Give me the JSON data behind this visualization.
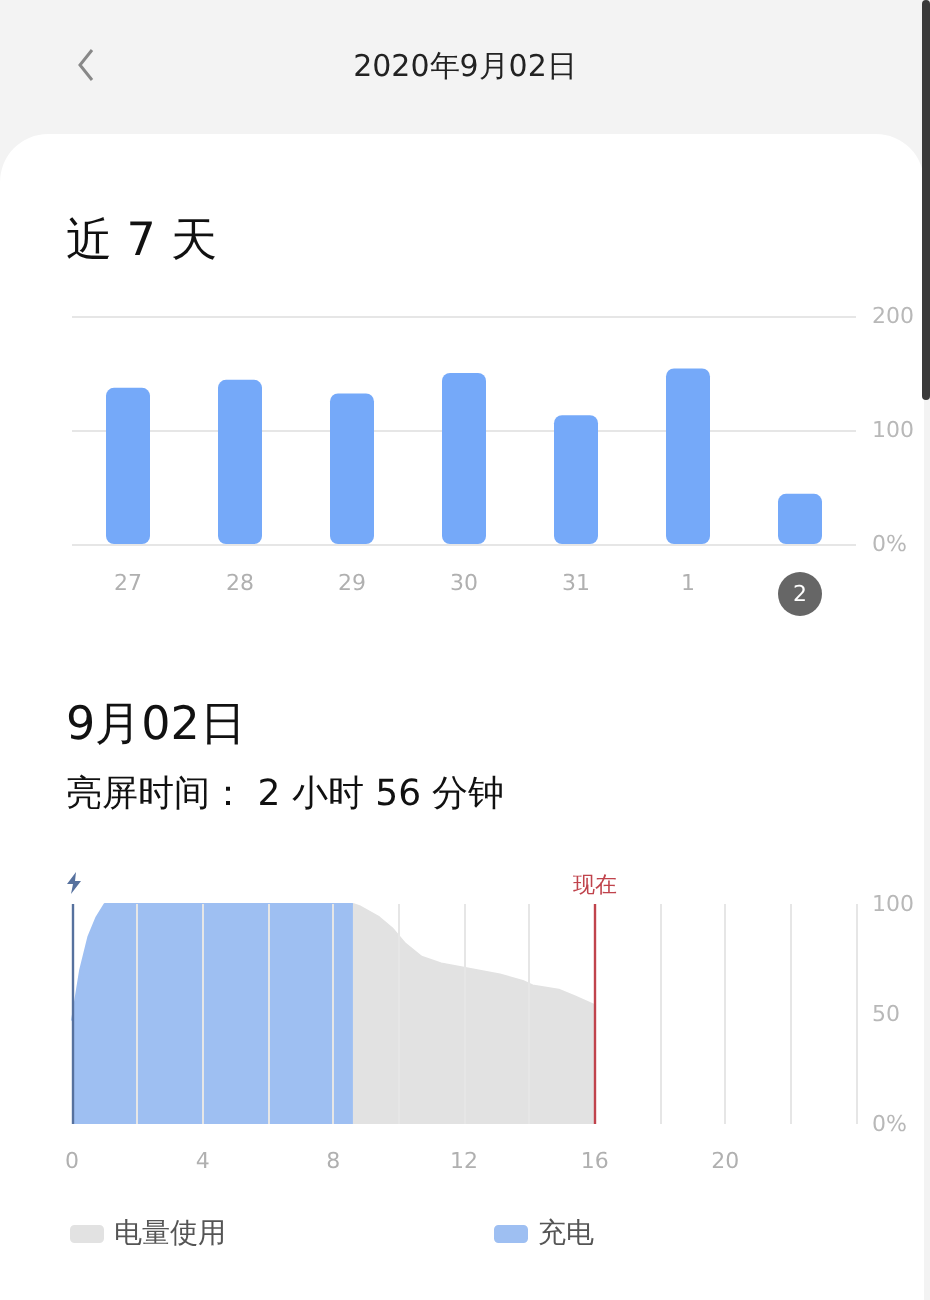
{
  "chart_data": [
    {
      "type": "bar",
      "title": "近 7 天",
      "annotations": [
        "2020年9月02日"
      ],
      "categories": [
        "27",
        "28",
        "29",
        "30",
        "31",
        "1",
        "2"
      ],
      "values": [
        137,
        144,
        132,
        150,
        113,
        154,
        44
      ],
      "color": "#75a9f9",
      "ylim": [
        0,
        200
      ],
      "yticks": [
        {
          "value": 0,
          "label": "0%"
        },
        100,
        200
      ],
      "grid": "y"
    },
    {
      "type": "area",
      "title": "9月02日",
      "subtitle": "亮屏时间： 2 小时 56 分钟",
      "series": [
        {
          "name": "电量使用",
          "color": "#e2e2e2",
          "x": [
            8.6,
            8.8,
            9.4,
            9.8,
            10.2,
            10.7,
            11.3,
            12,
            13.1,
            13.8,
            14.1,
            14.9,
            15.4,
            16
          ],
          "values": [
            100,
            99,
            94,
            89,
            82,
            76,
            73,
            71,
            68,
            65,
            63,
            61,
            58,
            54
          ]
        },
        {
          "name": "充电",
          "color": "#9ebff2",
          "x": [
            0,
            0.25,
            0.5,
            0.75,
            1,
            8.6
          ],
          "values": [
            47,
            70,
            85,
            94,
            100,
            100
          ]
        }
      ],
      "xlim": [
        0,
        24
      ],
      "xticks": [
        0,
        {
          "value": 2,
          "label": null
        },
        4,
        {
          "value": 6,
          "label": null
        },
        8,
        {
          "value": 10,
          "label": null
        },
        12,
        {
          "value": 14,
          "label": null
        },
        16,
        {
          "value": 18,
          "label": null
        },
        20,
        {
          "value": 22,
          "label": null
        },
        {
          "value": 24,
          "label": null
        }
      ],
      "ylim": [
        0,
        100
      ],
      "yticks": [
        {
          "value": 0,
          "label": "0%"
        },
        50,
        100
      ],
      "grid": "x",
      "legend": "bottom",
      "ref_lines": [
        {
          "axis": "x",
          "value": 0,
          "color": "#56719e"
        },
        {
          "axis": "x",
          "value": 16,
          "label": "现在",
          "color": "#c0434c"
        }
      ]
    }
  ]
}
